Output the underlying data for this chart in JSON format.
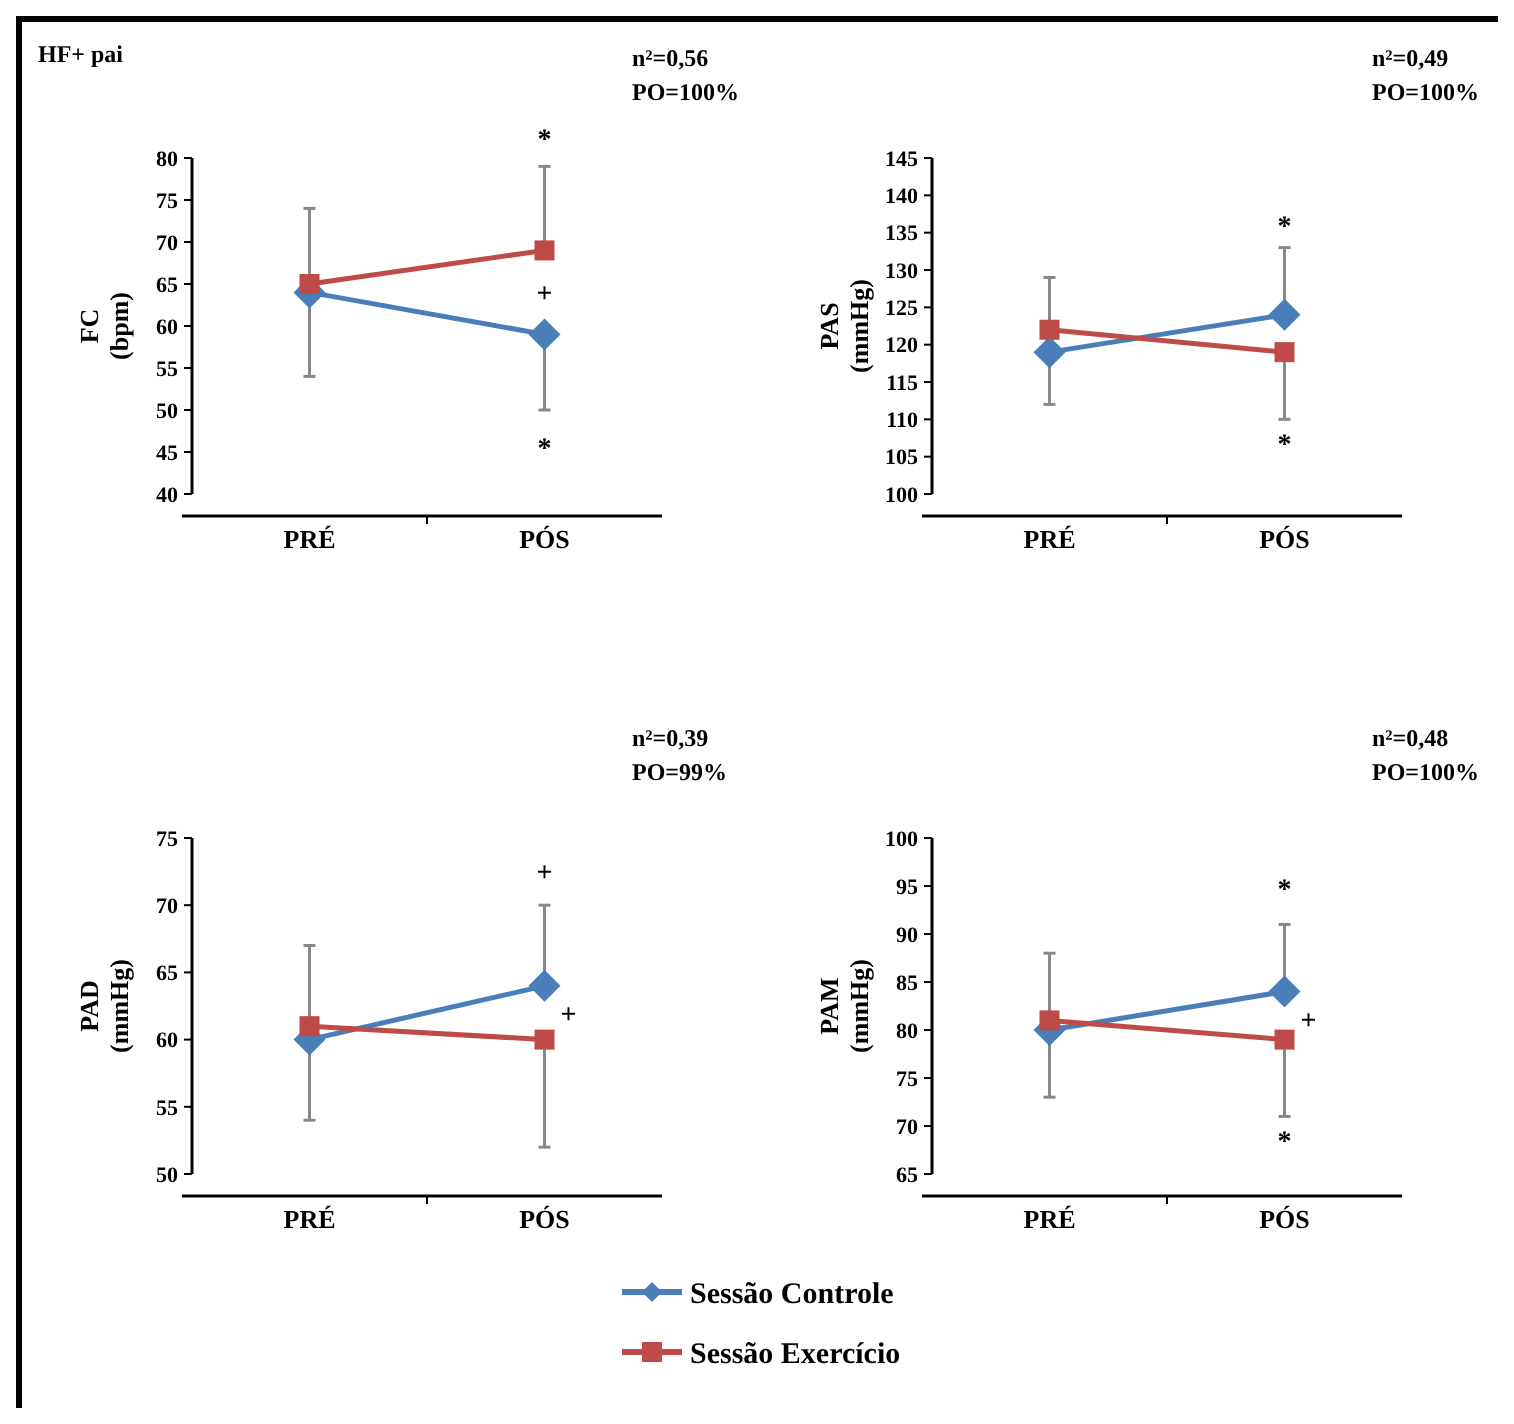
{
  "chart_data": [
    {
      "type": "line",
      "ylabel": "FC\n(bpm)",
      "categories": [
        "PRÉ",
        "PÓS"
      ],
      "ylim": [
        40,
        80
      ],
      "yticks": [
        40,
        45,
        50,
        55,
        60,
        65,
        70,
        75,
        80
      ],
      "grid": false,
      "legend": "bottom",
      "series": [
        {
          "name": "Sessão Controle",
          "color": "#4a7ebb",
          "marker": "diamond",
          "values": [
            64,
            59
          ],
          "errors": [
            [
              54,
              64
            ],
            [
              50,
              59
            ]
          ]
        },
        {
          "name": "Sessão Exercício",
          "color": "#be4b48",
          "marker": "square",
          "values": [
            65,
            69
          ],
          "errors": [
            [
              65,
              74
            ],
            [
              69,
              79
            ]
          ]
        }
      ],
      "annotations": [
        "HF+ pai",
        "n²=0,56\nPO=100%",
        "*",
        "+",
        "*"
      ]
    },
    {
      "type": "line",
      "ylabel": "PAS\n(mmHg)",
      "categories": [
        "PRÉ",
        "PÓS"
      ],
      "ylim": [
        100,
        145
      ],
      "yticks": [
        100,
        105,
        110,
        115,
        120,
        125,
        130,
        135,
        140,
        145
      ],
      "grid": false,
      "series": [
        {
          "color": "#4a7ebb",
          "marker": "diamond",
          "values": [
            119,
            124
          ],
          "errors": [
            [
              112,
              119
            ],
            [
              124,
              133
            ]
          ]
        },
        {
          "color": "#be4b48",
          "marker": "square",
          "values": [
            122,
            119
          ],
          "errors": [
            [
              122,
              129
            ],
            [
              110,
              119
            ]
          ]
        }
      ],
      "annotations": [
        "n²=0,49\nPO=100%",
        "*",
        "*"
      ]
    },
    {
      "type": "line",
      "ylabel": "PAD\n(mmHg)",
      "categories": [
        "PRÉ",
        "PÓS"
      ],
      "ylim": [
        50,
        75
      ],
      "yticks": [
        50,
        55,
        60,
        65,
        70,
        75
      ],
      "grid": false,
      "series": [
        {
          "color": "#4a7ebb",
          "marker": "diamond",
          "values": [
            60,
            64
          ],
          "errors": [
            [
              54,
              60
            ],
            [
              64,
              70
            ]
          ]
        },
        {
          "color": "#be4b48",
          "marker": "square",
          "values": [
            61,
            60
          ],
          "errors": [
            [
              61,
              67
            ],
            [
              52,
              60
            ]
          ]
        }
      ],
      "annotations": [
        "n²=0,39\nPO=99%",
        "+",
        "+"
      ]
    },
    {
      "type": "line",
      "ylabel": "PAM\n(mmHg)",
      "categories": [
        "PRÉ",
        "PÓS"
      ],
      "ylim": [
        65,
        100
      ],
      "yticks": [
        65,
        70,
        75,
        80,
        85,
        90,
        95,
        100
      ],
      "grid": false,
      "series": [
        {
          "color": "#4a7ebb",
          "marker": "diamond",
          "values": [
            80,
            84
          ],
          "errors": [
            [
              73,
              80
            ],
            [
              84,
              91
            ]
          ]
        },
        {
          "color": "#be4b48",
          "marker": "square",
          "values": [
            81,
            79
          ],
          "errors": [
            [
              81,
              88
            ],
            [
              71,
              79
            ]
          ]
        }
      ],
      "annotations": [
        "n²=0,48\nPO=100%",
        "*",
        "+",
        "*"
      ]
    }
  ]
}
